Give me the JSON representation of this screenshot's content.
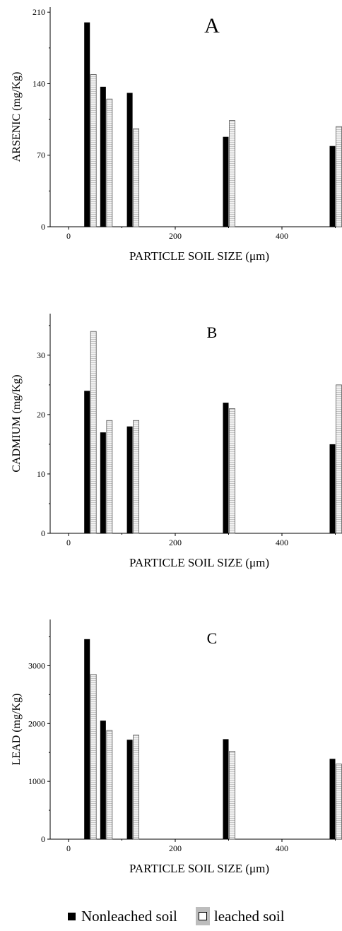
{
  "legend": {
    "nonleached_label": "Nonleached soil",
    "leached_label": "leached soil"
  },
  "chart_data": [
    {
      "type": "bar",
      "panel_label": "A",
      "xlabel": "PARTICLE SOIL SIZE (μm)",
      "ylabel": "ARSENIC (mg/Kg)",
      "xlim": [
        0,
        520
      ],
      "ylim": [
        0,
        215
      ],
      "xticks": [
        0,
        200,
        400
      ],
      "yticks": [
        0,
        70,
        140,
        210
      ],
      "x": [
        40,
        70,
        120,
        300,
        500
      ],
      "series": [
        {
          "name": "Nonleached soil",
          "values": [
            200,
            137,
            131,
            88,
            79
          ]
        },
        {
          "name": "leached soil",
          "values": [
            149,
            125,
            96,
            104,
            98
          ]
        }
      ]
    },
    {
      "type": "bar",
      "panel_label": "B",
      "xlabel": "PARTICLE SOIL SIZE (μm)",
      "ylabel": "CADMIUM (mg/Kg)",
      "xlim": [
        0,
        520
      ],
      "ylim": [
        0,
        37
      ],
      "xticks": [
        0,
        200,
        400
      ],
      "yticks": [
        0,
        10,
        20,
        30
      ],
      "x": [
        40,
        70,
        120,
        300,
        500
      ],
      "series": [
        {
          "name": "Nonleached soil",
          "values": [
            24,
            17,
            18,
            22,
            15
          ]
        },
        {
          "name": "leached soil",
          "values": [
            34,
            19,
            19,
            21,
            25
          ]
        }
      ]
    },
    {
      "type": "bar",
      "panel_label": "C",
      "xlabel": "PARTICLE SOIL SIZE (μm)",
      "ylabel": "LEAD (mg/Kg)",
      "xlim": [
        0,
        520
      ],
      "ylim": [
        0,
        3800
      ],
      "xticks": [
        0,
        200,
        400
      ],
      "yticks": [
        0,
        1000,
        2000,
        3000
      ],
      "x": [
        40,
        70,
        120,
        300,
        500
      ],
      "series": [
        {
          "name": "Nonleached soil",
          "values": [
            3460,
            2050,
            1720,
            1730,
            1390
          ]
        },
        {
          "name": "leached soil",
          "values": [
            2850,
            1880,
            1800,
            1520,
            1300
          ]
        }
      ]
    }
  ],
  "colors": {
    "nonleached": "#000000",
    "leached_fill": "#e9e9e9",
    "leached_stroke": "#555555"
  }
}
